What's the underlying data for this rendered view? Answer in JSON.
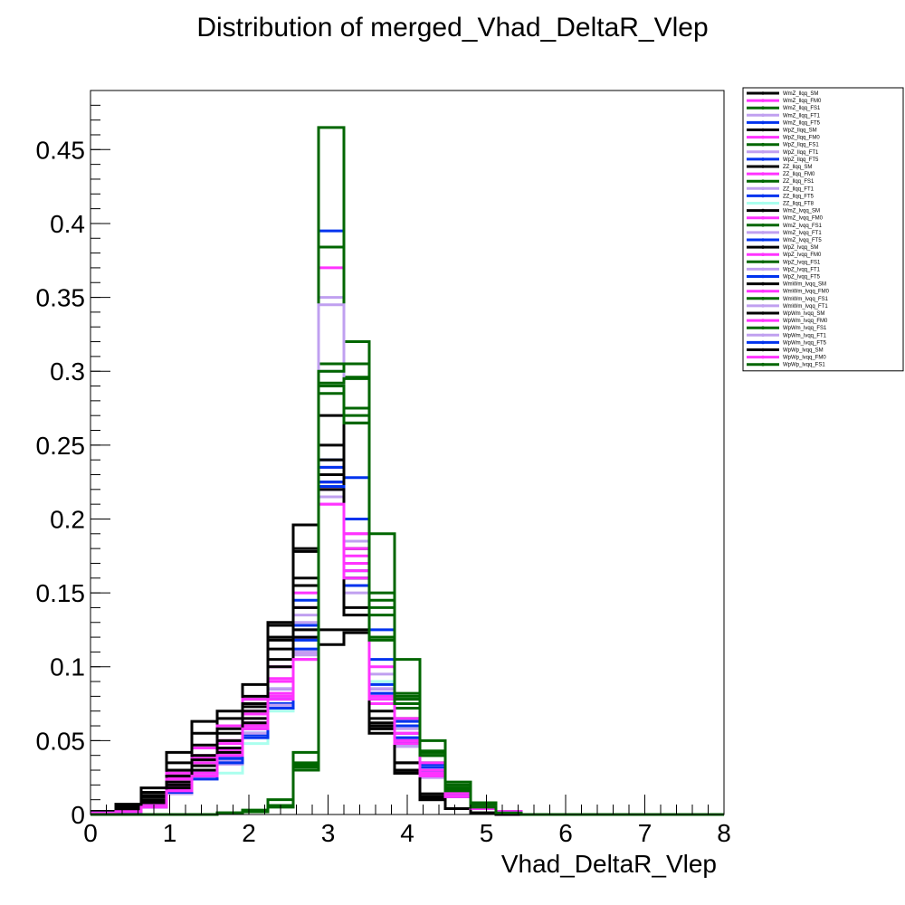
{
  "chart_data": {
    "type": "histogram",
    "title": "Distribution of merged_Vhad_DeltaR_Vlep",
    "xlabel": "Vhad_DeltaR_Vlep",
    "ylabel": "",
    "xlim": [
      0,
      8
    ],
    "ylim": [
      0,
      0.49
    ],
    "x_ticks": [
      "0",
      "1",
      "2",
      "3",
      "4",
      "5",
      "6",
      "7",
      "8"
    ],
    "y_ticks": [
      "0",
      "0.05",
      "0.1",
      "0.15",
      "0.2",
      "0.25",
      "0.3",
      "0.35",
      "0.4",
      "0.45"
    ],
    "bin_edges": [
      0,
      0.32,
      0.64,
      0.96,
      1.28,
      1.6,
      1.92,
      2.24,
      2.56,
      2.88,
      3.2,
      3.52,
      3.84,
      4.16,
      4.48,
      4.8,
      5.12,
      5.44,
      5.76,
      6.08,
      6.4,
      6.72,
      7.04,
      7.36,
      7.68,
      8.0
    ],
    "legend_position": "top-right",
    "grid": false,
    "series": [
      {
        "name": "WmZ_llqq_SM",
        "color": "#000000",
        "values": [
          0.002,
          0.007,
          0.018,
          0.042,
          0.063,
          0.07,
          0.08,
          0.13,
          0.196,
          0.115,
          0.123,
          0.055,
          0.03,
          0.01,
          0.004,
          0.001,
          0,
          0,
          0,
          0,
          0,
          0,
          0,
          0,
          0
        ]
      },
      {
        "name": "WmZ_llqq_FM0",
        "color": "#ff33ff",
        "values": [
          0.001,
          0.003,
          0.007,
          0.02,
          0.03,
          0.045,
          0.065,
          0.085,
          0.11,
          0.225,
          0.175,
          0.075,
          0.05,
          0.025,
          0.012,
          0.004,
          0.001,
          0,
          0,
          0,
          0,
          0,
          0,
          0,
          0
        ]
      },
      {
        "name": "WmZ_llqq_FS1",
        "color": "#006600",
        "values": [
          0,
          0,
          0,
          0,
          0,
          0.001,
          0.002,
          0.005,
          0.03,
          0.305,
          0.265,
          0.135,
          0.065,
          0.035,
          0.015,
          0.005,
          0.001,
          0,
          0,
          0,
          0,
          0,
          0,
          0,
          0
        ]
      },
      {
        "name": "WmZ_llqq_FT1",
        "color": "#c0a0f0",
        "values": [
          0.001,
          0.002,
          0.005,
          0.015,
          0.025,
          0.038,
          0.058,
          0.08,
          0.13,
          0.3,
          0.185,
          0.095,
          0.058,
          0.03,
          0.014,
          0.005,
          0.001,
          0,
          0,
          0,
          0,
          0,
          0,
          0,
          0
        ]
      },
      {
        "name": "WmZ_llqq_FT5",
        "color": "#0033ee",
        "values": [
          0.001,
          0.002,
          0.005,
          0.016,
          0.025,
          0.038,
          0.055,
          0.075,
          0.12,
          0.24,
          0.17,
          0.09,
          0.055,
          0.03,
          0.014,
          0.005,
          0.001,
          0,
          0,
          0,
          0,
          0,
          0,
          0,
          0
        ]
      },
      {
        "name": "WpZ_llqq_SM",
        "color": "#000000",
        "values": [
          0.002,
          0.006,
          0.015,
          0.035,
          0.055,
          0.065,
          0.078,
          0.12,
          0.18,
          0.125,
          0.125,
          0.06,
          0.028,
          0.01,
          0.004,
          0.001,
          0,
          0,
          0,
          0,
          0,
          0,
          0,
          0,
          0
        ]
      },
      {
        "name": "WpZ_llqq_FM0",
        "color": "#ff33ff",
        "values": [
          0.001,
          0.003,
          0.008,
          0.022,
          0.035,
          0.048,
          0.068,
          0.09,
          0.14,
          0.37,
          0.19,
          0.08,
          0.05,
          0.028,
          0.013,
          0.005,
          0.002,
          0,
          0,
          0,
          0,
          0,
          0,
          0,
          0
        ]
      },
      {
        "name": "WpZ_llqq_FS1",
        "color": "#006600",
        "values": [
          0,
          0,
          0,
          0,
          0,
          0.001,
          0.002,
          0.006,
          0.035,
          0.384,
          0.296,
          0.15,
          0.078,
          0.042,
          0.02,
          0.006,
          0.001,
          0,
          0,
          0,
          0,
          0,
          0,
          0,
          0
        ]
      },
      {
        "name": "WpZ_llqq_FT1",
        "color": "#c0a0f0",
        "values": [
          0.001,
          0.002,
          0.006,
          0.018,
          0.03,
          0.04,
          0.06,
          0.085,
          0.14,
          0.35,
          0.18,
          0.09,
          0.055,
          0.03,
          0.014,
          0.005,
          0.001,
          0,
          0,
          0,
          0,
          0,
          0,
          0,
          0
        ]
      },
      {
        "name": "WpZ_llqq_FT5",
        "color": "#0033ee",
        "values": [
          0.001,
          0.002,
          0.006,
          0.018,
          0.028,
          0.04,
          0.06,
          0.085,
          0.145,
          0.395,
          0.228,
          0.125,
          0.063,
          0.034,
          0.016,
          0.006,
          0.001,
          0,
          0,
          0,
          0,
          0,
          0,
          0,
          0
        ]
      },
      {
        "name": "ZZ_llqq_SM",
        "color": "#000000",
        "values": [
          0.002,
          0.005,
          0.012,
          0.028,
          0.045,
          0.06,
          0.088,
          0.128,
          0.178,
          0.225,
          0.155,
          0.07,
          0.035,
          0.012,
          0.004,
          0.001,
          0,
          0,
          0,
          0,
          0,
          0,
          0,
          0,
          0
        ]
      },
      {
        "name": "ZZ_llqq_FM0",
        "color": "#ff33ff",
        "values": [
          0.001,
          0.003,
          0.008,
          0.025,
          0.045,
          0.06,
          0.078,
          0.1,
          0.15,
          0.235,
          0.19,
          0.1,
          0.065,
          0.035,
          0.017,
          0.006,
          0.002,
          0,
          0,
          0,
          0,
          0,
          0,
          0,
          0
        ]
      },
      {
        "name": "ZZ_llqq_FS1",
        "color": "#006600",
        "values": [
          0,
          0,
          0,
          0,
          0,
          0.001,
          0.003,
          0.01,
          0.042,
          0.465,
          0.32,
          0.19,
          0.105,
          0.05,
          0.022,
          0.008,
          0.002,
          0,
          0,
          0,
          0,
          0,
          0,
          0,
          0
        ]
      },
      {
        "name": "ZZ_llqq_FT1",
        "color": "#c0a0f0",
        "values": [
          0.001,
          0.002,
          0.006,
          0.018,
          0.03,
          0.042,
          0.062,
          0.085,
          0.135,
          0.345,
          0.18,
          0.09,
          0.055,
          0.03,
          0.014,
          0.005,
          0.001,
          0,
          0,
          0,
          0,
          0,
          0,
          0,
          0
        ]
      },
      {
        "name": "ZZ_llqq_FT5",
        "color": "#0033ee",
        "values": [
          0.001,
          0.002,
          0.005,
          0.016,
          0.025,
          0.038,
          0.058,
          0.078,
          0.128,
          0.29,
          0.2,
          0.105,
          0.06,
          0.032,
          0.015,
          0.005,
          0.001,
          0,
          0,
          0,
          0,
          0,
          0,
          0,
          0
        ]
      },
      {
        "name": "ZZ_llqq_FT8",
        "color": "#aaffee",
        "values": [
          0.001,
          0.002,
          0.005,
          0.015,
          0.025,
          0.028,
          0.048,
          0.07,
          0.12,
          0.23,
          0.17,
          0.09,
          0.05,
          0.028,
          0.013,
          0.005,
          0.001,
          0,
          0,
          0,
          0,
          0,
          0,
          0,
          0
        ]
      },
      {
        "name": "WmZ_lvqq_SM",
        "color": "#000000",
        "values": [
          0.002,
          0.005,
          0.013,
          0.03,
          0.047,
          0.058,
          0.075,
          0.12,
          0.16,
          0.27,
          0.18,
          0.062,
          0.03,
          0.012,
          0.004,
          0.001,
          0,
          0,
          0,
          0,
          0,
          0,
          0,
          0,
          0
        ]
      },
      {
        "name": "WmZ_lvqq_FM0",
        "color": "#ff33ff",
        "values": [
          0.001,
          0.003,
          0.008,
          0.028,
          0.04,
          0.05,
          0.07,
          0.092,
          0.12,
          0.21,
          0.18,
          0.085,
          0.055,
          0.03,
          0.015,
          0.005,
          0.002,
          0,
          0,
          0,
          0,
          0,
          0,
          0,
          0
        ]
      },
      {
        "name": "WmZ_lvqq_FS1",
        "color": "#006600",
        "values": [
          0,
          0,
          0,
          0,
          0,
          0.001,
          0.002,
          0.006,
          0.033,
          0.29,
          0.27,
          0.14,
          0.072,
          0.04,
          0.018,
          0.006,
          0.001,
          0,
          0,
          0,
          0,
          0,
          0,
          0,
          0
        ]
      },
      {
        "name": "WmZ_lvqq_FT1",
        "color": "#c0a0f0",
        "values": [
          0.001,
          0.002,
          0.006,
          0.018,
          0.028,
          0.04,
          0.058,
          0.082,
          0.125,
          0.22,
          0.16,
          0.085,
          0.052,
          0.028,
          0.013,
          0.005,
          0.001,
          0,
          0,
          0,
          0,
          0,
          0,
          0,
          0
        ]
      },
      {
        "name": "WmZ_lvqq_FT5",
        "color": "#0033ee",
        "values": [
          0.001,
          0.002,
          0.005,
          0.016,
          0.025,
          0.036,
          0.055,
          0.075,
          0.118,
          0.225,
          0.16,
          0.085,
          0.05,
          0.028,
          0.013,
          0.005,
          0.001,
          0,
          0,
          0,
          0,
          0,
          0,
          0,
          0
        ]
      },
      {
        "name": "WpZ_lvqq_SM",
        "color": "#000000",
        "values": [
          0.002,
          0.005,
          0.012,
          0.026,
          0.04,
          0.055,
          0.073,
          0.118,
          0.155,
          0.25,
          0.18,
          0.058,
          0.028,
          0.012,
          0.004,
          0.001,
          0,
          0,
          0,
          0,
          0,
          0,
          0,
          0,
          0
        ]
      },
      {
        "name": "WpZ_lvqq_FM0",
        "color": "#ff33ff",
        "values": [
          0.001,
          0.003,
          0.008,
          0.024,
          0.038,
          0.05,
          0.068,
          0.09,
          0.12,
          0.23,
          0.18,
          0.085,
          0.055,
          0.03,
          0.015,
          0.005,
          0.002,
          0,
          0,
          0,
          0,
          0,
          0,
          0,
          0
        ]
      },
      {
        "name": "WpZ_lvqq_FS1",
        "color": "#006600",
        "values": [
          0,
          0,
          0,
          0,
          0,
          0.001,
          0.002,
          0.006,
          0.034,
          0.292,
          0.295,
          0.145,
          0.078,
          0.043,
          0.02,
          0.006,
          0.001,
          0,
          0,
          0,
          0,
          0,
          0,
          0,
          0
        ]
      },
      {
        "name": "WpZ_lvqq_FT1",
        "color": "#c0a0f0",
        "values": [
          0.001,
          0.002,
          0.006,
          0.018,
          0.028,
          0.04,
          0.058,
          0.08,
          0.12,
          0.23,
          0.165,
          0.085,
          0.05,
          0.028,
          0.013,
          0.005,
          0.001,
          0,
          0,
          0,
          0,
          0,
          0,
          0,
          0
        ]
      },
      {
        "name": "WpZ_lvqq_FT5",
        "color": "#0033ee",
        "values": [
          0.001,
          0.002,
          0.005,
          0.017,
          0.025,
          0.036,
          0.054,
          0.074,
          0.12,
          0.235,
          0.165,
          0.088,
          0.052,
          0.028,
          0.013,
          0.005,
          0.001,
          0,
          0,
          0,
          0,
          0,
          0,
          0,
          0
        ]
      },
      {
        "name": "WmWm_lvqq_SM",
        "color": "#000000",
        "values": [
          0.001,
          0.004,
          0.01,
          0.022,
          0.037,
          0.05,
          0.07,
          0.112,
          0.14,
          0.24,
          0.16,
          0.065,
          0.035,
          0.014,
          0.004,
          0.001,
          0,
          0,
          0,
          0,
          0,
          0,
          0,
          0,
          0
        ]
      },
      {
        "name": "WmWm_lvqq_FM0",
        "color": "#ff33ff",
        "values": [
          0.001,
          0.002,
          0.006,
          0.018,
          0.03,
          0.044,
          0.062,
          0.082,
          0.108,
          0.22,
          0.17,
          0.082,
          0.05,
          0.028,
          0.013,
          0.005,
          0.001,
          0,
          0,
          0,
          0,
          0,
          0,
          0,
          0
        ]
      },
      {
        "name": "WmWm_lvqq_FS1",
        "color": "#006600",
        "values": [
          0,
          0,
          0,
          0,
          0,
          0.001,
          0.002,
          0.006,
          0.032,
          0.3,
          0.305,
          0.12,
          0.082,
          0.042,
          0.018,
          0.006,
          0.001,
          0,
          0,
          0,
          0,
          0,
          0,
          0,
          0
        ]
      },
      {
        "name": "WmWm_lvqq_FT1",
        "color": "#c0a0f0",
        "values": [
          0.001,
          0.002,
          0.005,
          0.015,
          0.025,
          0.036,
          0.055,
          0.074,
          0.11,
          0.22,
          0.155,
          0.08,
          0.048,
          0.026,
          0.012,
          0.004,
          0.001,
          0,
          0,
          0,
          0,
          0,
          0,
          0,
          0
        ]
      },
      {
        "name": "WpWm_lvqq_SM",
        "color": "#000000",
        "values": [
          0.001,
          0.004,
          0.009,
          0.02,
          0.033,
          0.045,
          0.065,
          0.105,
          0.125,
          0.23,
          0.14,
          0.06,
          0.03,
          0.012,
          0.004,
          0.001,
          0,
          0,
          0,
          0,
          0,
          0,
          0,
          0,
          0
        ]
      },
      {
        "name": "WpWm_lvqq_FM0",
        "color": "#ff33ff",
        "values": [
          0.001,
          0.002,
          0.006,
          0.017,
          0.028,
          0.042,
          0.06,
          0.08,
          0.105,
          0.215,
          0.165,
          0.08,
          0.05,
          0.027,
          0.013,
          0.005,
          0.001,
          0,
          0,
          0,
          0,
          0,
          0,
          0,
          0
        ]
      },
      {
        "name": "WpWm_lvqq_FS1",
        "color": "#006600",
        "values": [
          0,
          0,
          0,
          0,
          0,
          0.001,
          0.002,
          0.006,
          0.03,
          0.29,
          0.275,
          0.12,
          0.08,
          0.04,
          0.017,
          0.005,
          0.001,
          0,
          0,
          0,
          0,
          0,
          0,
          0,
          0
        ]
      },
      {
        "name": "WpWm_lvqq_FT1",
        "color": "#c0a0f0",
        "values": [
          0.001,
          0.002,
          0.005,
          0.014,
          0.024,
          0.034,
          0.052,
          0.072,
          0.108,
          0.215,
          0.15,
          0.078,
          0.046,
          0.025,
          0.012,
          0.004,
          0.001,
          0,
          0,
          0,
          0,
          0,
          0,
          0,
          0
        ]
      },
      {
        "name": "WpWm_lvqq_FT5",
        "color": "#0033ee",
        "values": [
          0.001,
          0.002,
          0.005,
          0.015,
          0.024,
          0.035,
          0.052,
          0.072,
          0.112,
          0.222,
          0.155,
          0.082,
          0.048,
          0.026,
          0.012,
          0.004,
          0.001,
          0,
          0,
          0,
          0,
          0,
          0,
          0,
          0
        ]
      },
      {
        "name": "WpWp_lvqq_SM",
        "color": "#000000",
        "values": [
          0.001,
          0.003,
          0.008,
          0.018,
          0.03,
          0.042,
          0.062,
          0.1,
          0.12,
          0.22,
          0.135,
          0.058,
          0.028,
          0.011,
          0.004,
          0.001,
          0,
          0,
          0,
          0,
          0,
          0,
          0,
          0,
          0
        ]
      },
      {
        "name": "WpWp_lvqq_FM0",
        "color": "#ff33ff",
        "values": [
          0.001,
          0.002,
          0.005,
          0.016,
          0.026,
          0.04,
          0.058,
          0.078,
          0.105,
          0.21,
          0.16,
          0.078,
          0.048,
          0.026,
          0.012,
          0.004,
          0.001,
          0,
          0,
          0,
          0,
          0,
          0,
          0,
          0
        ]
      },
      {
        "name": "WpWp_lvqq_FS1",
        "color": "#006600",
        "values": [
          0,
          0,
          0,
          0,
          0,
          0.001,
          0.002,
          0.006,
          0.03,
          0.285,
          0.265,
          0.118,
          0.075,
          0.04,
          0.016,
          0.005,
          0.001,
          0,
          0,
          0,
          0,
          0,
          0,
          0,
          0
        ]
      }
    ]
  }
}
